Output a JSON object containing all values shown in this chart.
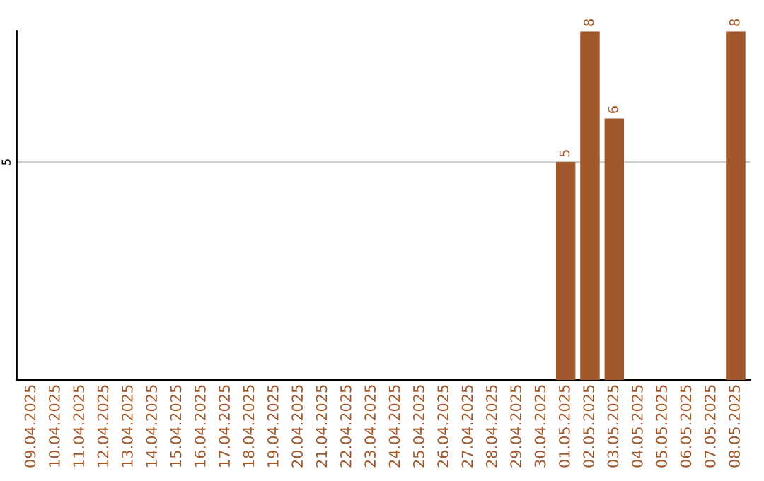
{
  "chart_data": {
    "type": "bar",
    "categories": [
      "09.04.2025",
      "10.04.2025",
      "11.04.2025",
      "12.04.2025",
      "13.04.2025",
      "14.04.2025",
      "15.04.2025",
      "16.04.2025",
      "17.04.2025",
      "18.04.2025",
      "19.04.2025",
      "20.04.2025",
      "21.04.2025",
      "22.04.2025",
      "23.04.2025",
      "24.04.2025",
      "25.04.2025",
      "26.04.2025",
      "27.04.2025",
      "28.04.2025",
      "29.04.2025",
      "30.04.2025",
      "01.05.2025",
      "02.05.2025",
      "03.05.2025",
      "04.05.2025",
      "05.05.2025",
      "06.05.2025",
      "07.05.2025",
      "08.05.2025"
    ],
    "values": [
      null,
      null,
      null,
      null,
      null,
      null,
      null,
      null,
      null,
      null,
      null,
      null,
      null,
      null,
      null,
      null,
      null,
      null,
      null,
      null,
      null,
      null,
      5,
      8,
      6,
      null,
      null,
      null,
      null,
      8
    ],
    "color": "#a0572a",
    "ylim": [
      0,
      8
    ],
    "yticks": [
      5
    ],
    "grid": "y",
    "data_labels": true,
    "legend": false
  }
}
